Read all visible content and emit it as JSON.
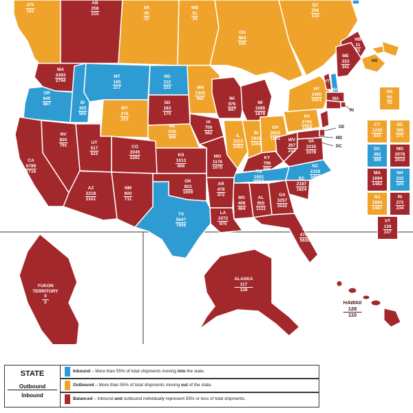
{
  "colors": {
    "inbound": "#2e9bd3",
    "outbound": "#f0a32b",
    "balanced": "#a3282c",
    "background": "#ffffff"
  },
  "regions": {
    "ab": {
      "state": "AB",
      "inbound": "258",
      "outbound": "215"
    },
    "bc": {
      "state": "",
      "inbound": "270",
      "outbound": "181"
    },
    "sk": {
      "state": "SK",
      "inbound": "45",
      "outbound": "32"
    },
    "mb": {
      "state": "MB",
      "inbound": "51",
      "outbound": "34"
    },
    "on": {
      "state": "ON",
      "inbound": "864",
      "outbound": "535"
    },
    "qc": {
      "state": "QC",
      "inbound": "206",
      "outbound": "133"
    },
    "nb": {
      "state": "NB",
      "inbound": "11",
      "outbound": "11"
    },
    "ns": {
      "state": "NS",
      "inbound": "60",
      "outbound": "43"
    },
    "yukon": {
      "state": "YUKON TERRITORY",
      "inbound": "0",
      "outbound": "0"
    },
    "wa": {
      "state": "WA",
      "inbound": "2493",
      "outbound": "2794"
    },
    "or": {
      "state": "OR",
      "inbound": "640",
      "outbound": "867"
    },
    "id": {
      "state": "ID",
      "inbound": "305",
      "outbound": "505"
    },
    "mt": {
      "state": "MT",
      "inbound": "165",
      "outbound": "217"
    },
    "nd": {
      "state": "ND",
      "inbound": "112",
      "outbound": "231"
    },
    "mn": {
      "state": "MN",
      "inbound": "1335",
      "outbound": "962"
    },
    "wi": {
      "state": "WI",
      "inbound": "976",
      "outbound": "847"
    },
    "mi": {
      "state": "MI",
      "inbound": "1685",
      "outbound": "1878"
    },
    "wy": {
      "state": "WY",
      "inbound": "276",
      "outbound": "223"
    },
    "sd": {
      "state": "SD",
      "inbound": "183",
      "outbound": "170"
    },
    "ia": {
      "state": "IA",
      "inbound": "700",
      "outbound": "582"
    },
    "ne": {
      "state": "NE",
      "inbound": "528",
      "outbound": "366"
    },
    "nv": {
      "state": "NV",
      "inbound": "820",
      "outbound": "791"
    },
    "ut": {
      "state": "UT",
      "inbound": "517",
      "outbound": "522"
    },
    "co": {
      "state": "CO",
      "inbound": "2045",
      "outbound": "2281"
    },
    "ks": {
      "state": "KS",
      "inbound": "1013",
      "outbound": "856"
    },
    "mo": {
      "state": "MO",
      "inbound": "1176",
      "outbound": "1075"
    },
    "il": {
      "state": "IL",
      "inbound": "3315",
      "outbound": "2453"
    },
    "in": {
      "state": "IN",
      "inbound": "1816",
      "outbound": "1264"
    },
    "oh": {
      "state": "OH",
      "inbound": "2622",
      "outbound": "1931"
    },
    "ca": {
      "state": "CA",
      "inbound": "6789",
      "outbound": "7716"
    },
    "az": {
      "state": "AZ",
      "inbound": "2218",
      "outbound": "2101"
    },
    "nm": {
      "state": "NM",
      "inbound": "600",
      "outbound": "711"
    },
    "ok": {
      "state": "OK",
      "inbound": "923",
      "outbound": "1009"
    },
    "ar": {
      "state": "AR",
      "inbound": "478",
      "outbound": "472"
    },
    "tx": {
      "state": "TX",
      "inbound": "5647",
      "outbound": "7856"
    },
    "la": {
      "state": "LA",
      "inbound": "1072",
      "outbound": "975"
    },
    "ms": {
      "state": "MS",
      "inbound": "408",
      "outbound": "464"
    },
    "al": {
      "state": "AL",
      "inbound": "955",
      "outbound": "1121"
    },
    "ga": {
      "state": "GA",
      "inbound": "3257",
      "outbound": "3032"
    },
    "fl": {
      "state": "FL",
      "inbound": "4785",
      "outbound": "5630"
    },
    "tn": {
      "state": "TN",
      "inbound": "1501",
      "outbound": "1924"
    },
    "ky": {
      "state": "KY",
      "inbound": "796",
      "outbound": "886"
    },
    "wv": {
      "state": "WV",
      "inbound": "267",
      "outbound": "233"
    },
    "va": {
      "state": "VA",
      "inbound": "3235",
      "outbound": "3378"
    },
    "nc": {
      "state": "NC",
      "inbound": "2328",
      "outbound": "3486"
    },
    "sc": {
      "state": "SC",
      "inbound": "2187",
      "outbound": "1824"
    },
    "pa": {
      "state": "PA",
      "inbound": "2790",
      "outbound": "2204"
    },
    "ny": {
      "state": "NY",
      "inbound": "3400",
      "outbound": "3451"
    },
    "me": {
      "state": "ME",
      "inbound": "333",
      "outbound": "341"
    },
    "alaska": {
      "state": "ALASKA",
      "inbound": "117",
      "outbound": "139"
    },
    "hawaii": {
      "state": "HAWAII",
      "inbound": "128",
      "outbound": "110"
    }
  },
  "boxes": [
    {
      "state": "NS",
      "inbound": "60",
      "outbound": "43",
      "status": "outbound"
    },
    {
      "state": "CT",
      "inbound": "1230",
      "outbound": "825",
      "status": "outbound"
    },
    {
      "state": "DE",
      "inbound": "385",
      "outbound": "271",
      "status": "outbound"
    },
    {
      "state": "DC",
      "inbound": "382",
      "outbound": "489",
      "status": "inbound"
    },
    {
      "state": "MD",
      "inbound": "2078",
      "outbound": "2010",
      "status": "balanced"
    },
    {
      "state": "MA",
      "inbound": "1694",
      "outbound": "1483",
      "status": "balanced"
    },
    {
      "state": "NH",
      "inbound": "232",
      "outbound": "320",
      "status": "inbound"
    },
    {
      "state": "NJ",
      "inbound": "1884",
      "outbound": "1487",
      "status": "outbound"
    },
    {
      "state": "RI",
      "inbound": "272",
      "outbound": "234",
      "status": "balanced"
    },
    {
      "state": "VT",
      "inbound": "139",
      "outbound": "137",
      "status": "balanced"
    }
  ],
  "small_tags": {
    "vt": "VT",
    "nh": "NH",
    "ma": "MA",
    "ri": "RI",
    "de": "DE",
    "md": "MD",
    "dc": "DC"
  },
  "legend": {
    "key_title": "STATE",
    "key_outbound": "Outbound",
    "key_inbound": "Inbound",
    "rows": [
      {
        "status": "inbound",
        "lead": "Inbound",
        "text": " – More than 55% of total shipments moving ",
        "emph": "into",
        "tail": " the state."
      },
      {
        "status": "outbound",
        "lead": "Outbound",
        "text": " – More than 55% of total shipments moving ",
        "emph": "out",
        "tail": " of the state."
      },
      {
        "status": "balanced",
        "lead": "Balanced",
        "text": " – Inbound ",
        "emph": "and",
        "tail": " outbound individually represent 55% or less of total shipments."
      }
    ]
  }
}
